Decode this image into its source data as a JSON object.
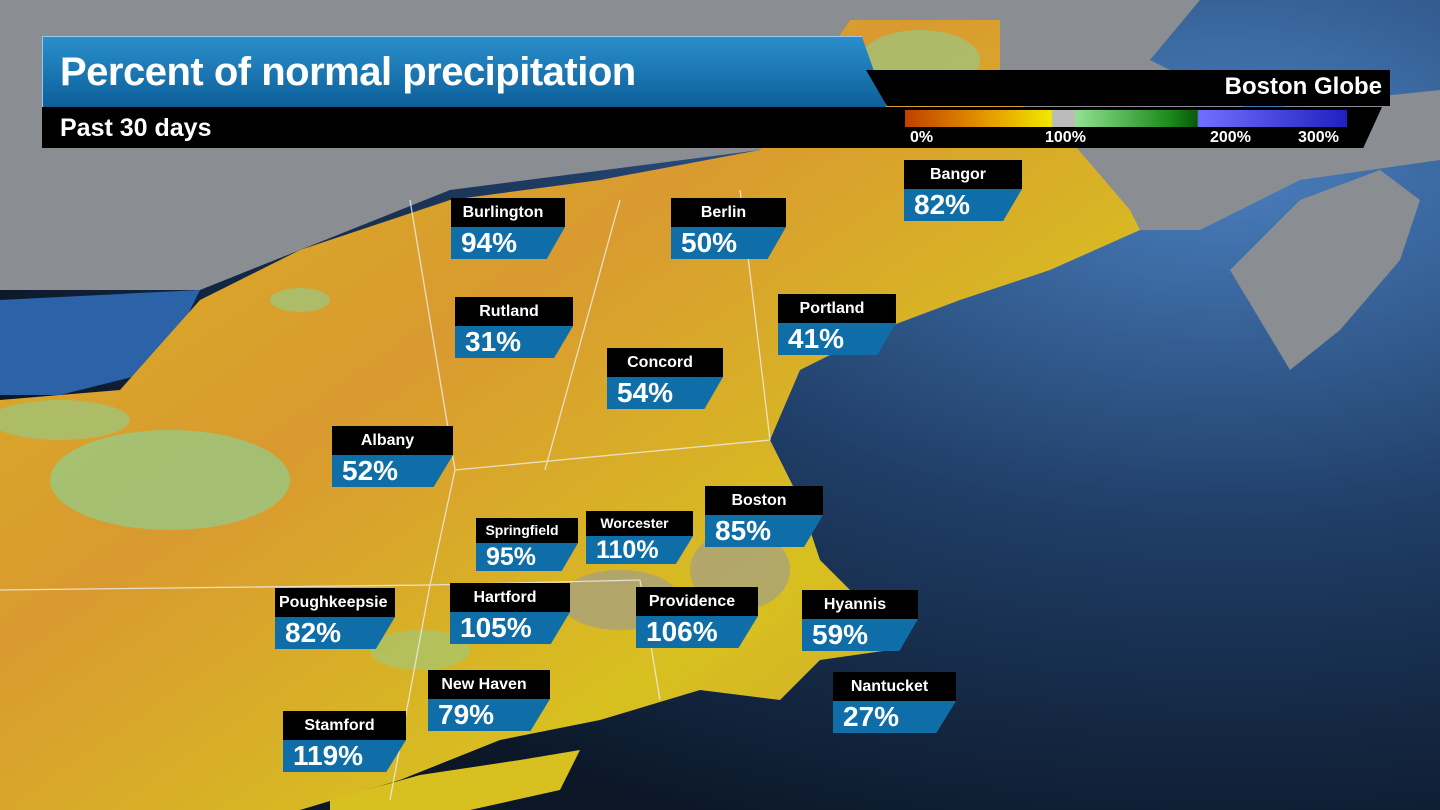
{
  "header": {
    "title": "Percent of normal precipitation",
    "subtitle": "Past 30 days",
    "brand": "Boston Globe"
  },
  "legend": {
    "ticks": [
      "0%",
      "100%",
      "200%",
      "300%"
    ],
    "colors": [
      "#c04000",
      "#f0e800",
      "#bbbbbb",
      "#1a8a1a",
      "#2020c0"
    ]
  },
  "cities": [
    {
      "name": "Burlington",
      "value": "94%"
    },
    {
      "name": "Berlin",
      "value": "50%"
    },
    {
      "name": "Bangor",
      "value": "82%"
    },
    {
      "name": "Rutland",
      "value": "31%"
    },
    {
      "name": "Portland",
      "value": "41%"
    },
    {
      "name": "Concord",
      "value": "54%"
    },
    {
      "name": "Albany",
      "value": "52%"
    },
    {
      "name": "Springfield",
      "value": "95%"
    },
    {
      "name": "Worcester",
      "value": "110%"
    },
    {
      "name": "Boston",
      "value": "85%"
    },
    {
      "name": "Poughkeepsie",
      "value": "82%"
    },
    {
      "name": "Hartford",
      "value": "105%"
    },
    {
      "name": "Providence",
      "value": "106%"
    },
    {
      "name": "Hyannis",
      "value": "59%"
    },
    {
      "name": "New Haven",
      "value": "79%"
    },
    {
      "name": "Nantucket",
      "value": "27%"
    },
    {
      "name": "Stamford",
      "value": "119%"
    }
  ]
}
